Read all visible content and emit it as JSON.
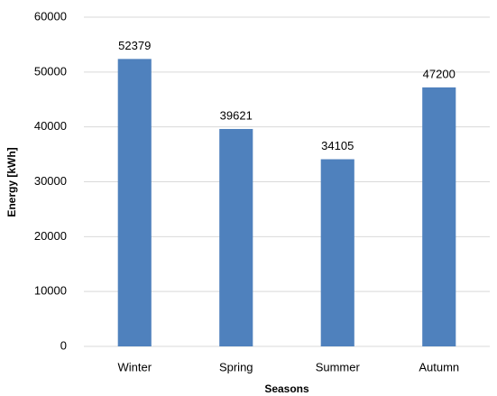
{
  "chart_data": {
    "type": "bar",
    "x_label": "Seasons",
    "y_label": "Energy [kWh]",
    "categories": [
      "Winter",
      "Spring",
      "Summer",
      "Autumn"
    ],
    "values": [
      52379,
      39621,
      34105,
      47200
    ],
    "color": "#4f81bd",
    "ylim": [
      0,
      60000
    ],
    "yticks": [
      0,
      10000,
      20000,
      30000,
      40000,
      50000,
      60000
    ],
    "grid": true
  }
}
